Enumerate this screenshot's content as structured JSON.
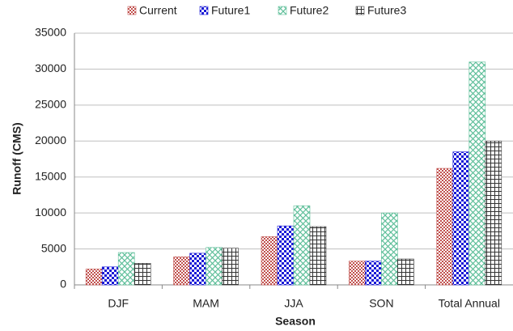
{
  "chart_data": {
    "type": "bar",
    "categories": [
      "DJF",
      "MAM",
      "JJA",
      "SON",
      "Total Annual"
    ],
    "series": [
      {
        "name": "Current",
        "color": "#c0504d",
        "values": [
          2200,
          3900,
          6700,
          3300,
          16200
        ]
      },
      {
        "name": "Future1",
        "color": "#1a1ad6",
        "values": [
          2500,
          4400,
          8200,
          3300,
          18500
        ]
      },
      {
        "name": "Future2",
        "color": "#5fbf9a",
        "values": [
          4500,
          5200,
          11000,
          10000,
          31000
        ]
      },
      {
        "name": "Future3",
        "color": "#333333",
        "values": [
          3000,
          5100,
          8100,
          3600,
          20000
        ]
      }
    ],
    "xlabel": "Season",
    "ylabel": "Runoff (CMS)",
    "ylim": [
      0,
      35000
    ],
    "yticks": [
      0,
      5000,
      10000,
      15000,
      20000,
      25000,
      30000,
      35000
    ],
    "grid": true,
    "legend": "top"
  }
}
